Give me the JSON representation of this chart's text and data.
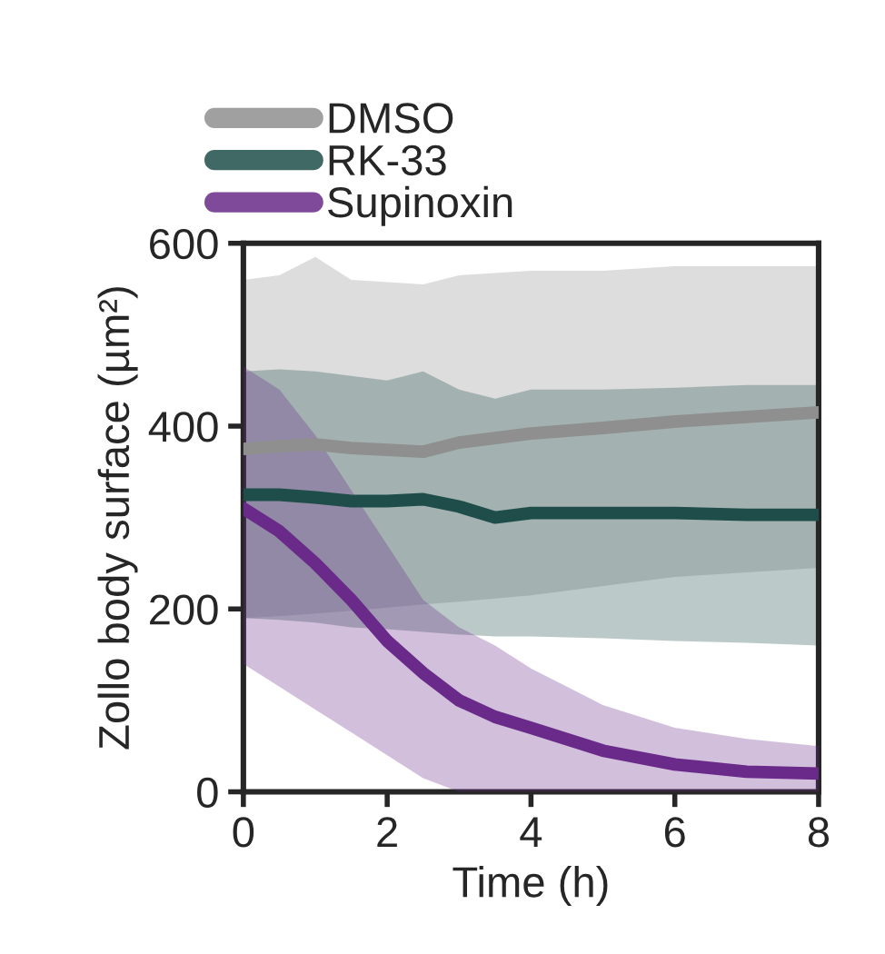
{
  "chart_data": {
    "type": "line",
    "xlabel": "Time (h)",
    "ylabel": "Zollo body surface (µm²)",
    "xlim": [
      0,
      8
    ],
    "ylim": [
      0,
      600
    ],
    "xticks": [
      0,
      2,
      4,
      6,
      8
    ],
    "yticks": [
      0,
      200,
      400,
      600
    ],
    "grid": false,
    "legend": "top left",
    "marker": "none",
    "line_style": "solid",
    "series": [
      {
        "name": "DMSO",
        "color": "#8f8f8f",
        "x": [
          0,
          0.5,
          1,
          1.5,
          2.5,
          3,
          4,
          5,
          6,
          7,
          8
        ],
        "values": [
          375,
          378,
          380,
          376,
          372,
          382,
          392,
          398,
          405,
          410,
          415
        ],
        "lower": [
          190,
          192,
          195,
          198,
          205,
          208,
          215,
          225,
          235,
          240,
          245
        ],
        "upper": [
          560,
          565,
          585,
          560,
          555,
          565,
          570,
          570,
          575,
          575,
          575
        ]
      },
      {
        "name": "RK-33",
        "color": "#1f4e4a",
        "x": [
          0,
          0.5,
          1,
          1.5,
          2,
          2.5,
          3,
          3.5,
          4,
          5,
          6,
          7,
          8
        ],
        "values": [
          325,
          325,
          322,
          318,
          318,
          320,
          312,
          300,
          305,
          305,
          305,
          303,
          303
        ],
        "lower": [
          190,
          188,
          185,
          180,
          178,
          175,
          172,
          170,
          170,
          168,
          165,
          163,
          160
        ],
        "upper": [
          460,
          462,
          460,
          455,
          450,
          460,
          440,
          430,
          440,
          440,
          442,
          445,
          445
        ]
      },
      {
        "name": "Supinoxin",
        "color": "#6a2a8a",
        "x": [
          0,
          0.5,
          1,
          1.5,
          2,
          2.5,
          3,
          3.5,
          4,
          5,
          6,
          7,
          8
        ],
        "values": [
          310,
          285,
          250,
          210,
          165,
          130,
          100,
          82,
          70,
          45,
          30,
          22,
          20
        ],
        "lower": [
          140,
          115,
          90,
          65,
          40,
          15,
          0,
          0,
          0,
          0,
          0,
          0,
          0
        ],
        "upper": [
          465,
          440,
          390,
          330,
          270,
          210,
          180,
          160,
          135,
          95,
          70,
          58,
          50
        ]
      }
    ]
  }
}
